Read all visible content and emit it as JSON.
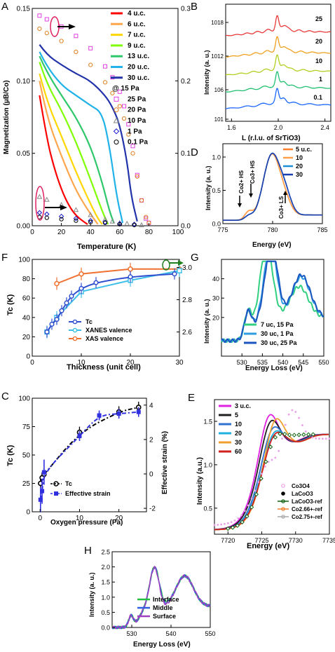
{
  "chart_data": [
    {
      "panel": "A",
      "type": "line",
      "xlabel": "Temperature (K)",
      "ylabel": "Magnetization (μB/Co)",
      "xlim": [
        0,
        100
      ],
      "ylim": [
        0,
        0.15
      ],
      "y2lim": [
        0,
        0.3
      ],
      "xticks": [
        "0",
        "20",
        "40",
        "60",
        "80",
        "100"
      ],
      "yticks": [
        "0.00",
        "0.05",
        "0.10",
        "0.15"
      ],
      "y2ticks": [
        "0.0",
        "0.1",
        "0.2",
        "0.3"
      ],
      "legend_position": "top-right",
      "series": [
        {
          "name": "4 u.c.",
          "color": "#ff0000",
          "x": [
            5,
            10,
            15,
            20,
            25,
            30,
            35,
            38
          ],
          "y": [
            0.09,
            0.06,
            0.04,
            0.025,
            0.014,
            0.007,
            0.003,
            0.001
          ]
        },
        {
          "name": "6 u.c.",
          "color": "#ffa64d",
          "x": [
            5,
            10,
            20,
            30,
            40,
            45
          ],
          "y": [
            0.1,
            0.075,
            0.048,
            0.024,
            0.008,
            0.001
          ]
        },
        {
          "name": "7 u.c.",
          "color": "#ffd700",
          "x": [
            5,
            10,
            20,
            30,
            40,
            45,
            48
          ],
          "y": [
            0.105,
            0.086,
            0.062,
            0.037,
            0.015,
            0.005,
            0.001
          ]
        },
        {
          "name": "9 u.c.",
          "color": "#7fff00",
          "x": [
            5,
            10,
            20,
            30,
            40,
            48,
            52
          ],
          "y": [
            0.113,
            0.098,
            0.08,
            0.058,
            0.032,
            0.01,
            0.001
          ]
        },
        {
          "name": "13 u.c.",
          "color": "#2ec86a",
          "x": [
            5,
            10,
            20,
            30,
            40,
            48,
            53,
            56
          ],
          "y": [
            0.117,
            0.106,
            0.09,
            0.075,
            0.055,
            0.03,
            0.01,
            0.002
          ]
        },
        {
          "name": "20 u.c.",
          "color": "#20b2e8",
          "x": [
            5,
            10,
            20,
            30,
            40,
            48,
            53,
            58,
            62
          ],
          "y": [
            0.12,
            0.11,
            0.097,
            0.09,
            0.083,
            0.078,
            0.055,
            0.02,
            0.002
          ]
        },
        {
          "name": "30 u.c.",
          "color": "#2233aa",
          "x": [
            5,
            10,
            20,
            30,
            40,
            50,
            55,
            60,
            65,
            68,
            72
          ],
          "y": [
            0.125,
            0.118,
            0.111,
            0.105,
            0.1,
            0.09,
            0.082,
            0.07,
            0.045,
            0.02,
            0.003
          ]
        }
      ],
      "marker_series": [
        {
          "name": "@ 15 Pa",
          "axis": "right",
          "marker": "at",
          "color": "#000000",
          "x": [],
          "y": []
        },
        {
          "name": "25 Pa",
          "axis": "right",
          "marker": "square",
          "color": "#e040e0",
          "x": [
            5,
            10,
            20,
            30,
            40,
            50,
            55,
            60,
            63,
            66,
            69,
            72,
            75,
            78,
            80
          ],
          "y": [
            0.29,
            0.285,
            0.275,
            0.262,
            0.245,
            0.22,
            0.205,
            0.185,
            0.165,
            0.14,
            0.11,
            0.07,
            0.035,
            0.01,
            0.004
          ]
        },
        {
          "name": "20 Pa",
          "axis": "right",
          "marker": "circle",
          "color": "#e08020",
          "x": [
            5,
            10,
            20,
            30,
            40,
            50,
            55,
            60,
            63,
            66,
            69,
            72,
            75,
            78,
            80
          ],
          "y": [
            0.272,
            0.266,
            0.255,
            0.24,
            0.222,
            0.198,
            0.183,
            0.165,
            0.148,
            0.126,
            0.1,
            0.068,
            0.035,
            0.012,
            0.004
          ]
        },
        {
          "name": "10 Pa",
          "axis": "right",
          "marker": "triangle",
          "color": "#888888",
          "x": [
            5,
            10,
            20,
            30,
            40,
            50,
            55,
            60,
            65,
            70,
            75
          ],
          "y": [
            0.04,
            0.036,
            0.029,
            0.022,
            0.015,
            0.009,
            0.006,
            0.004,
            0.003,
            0.002,
            0.001
          ]
        },
        {
          "name": "1 Pa",
          "axis": "right",
          "marker": "diamond",
          "color": "#1010d0",
          "x": [
            5,
            10,
            20,
            30,
            40,
            50,
            60,
            70
          ],
          "y": [
            0.018,
            0.016,
            0.013,
            0.01,
            0.007,
            0.005,
            0.003,
            0.002
          ]
        },
        {
          "name": "0.1 Pa",
          "axis": "right",
          "marker": "circle",
          "color": "#000000",
          "x": [
            5,
            10,
            20,
            30,
            40,
            50,
            60,
            70
          ],
          "y": [
            0.012,
            0.011,
            0.009,
            0.007,
            0.005,
            0.004,
            0.002,
            0.001
          ]
        }
      ]
    },
    {
      "panel": "B",
      "type": "line",
      "xlabel": "L (r.l.u. of SrTiO3)",
      "ylabel": "Intensity (a. u.)",
      "xlim": [
        1.55,
        2.45
      ],
      "xticks": [
        "1.6",
        "2.0",
        "2.4"
      ],
      "yticks": [
        "10^1",
        "10^6",
        "10^12",
        "10^18"
      ],
      "labels": [
        "25",
        "20",
        "10",
        "1",
        "0.1"
      ],
      "colors": [
        "#e83a3a",
        "#f0a020",
        "#b0d020",
        "#20c070",
        "#1a66ff"
      ]
    },
    {
      "panel": "D",
      "type": "line",
      "xlabel": "Energy (eV)",
      "ylabel": "Intensity (a. u.)",
      "xlim": [
        775,
        785
      ],
      "ylim": [
        0,
        1.2
      ],
      "xticks": [
        "775",
        "780",
        "785"
      ],
      "yticks": [
        "0.0",
        "0.5",
        "1.0"
      ],
      "annotations": [
        "Co2+ HS",
        "Co3+ HS",
        "Co3+ LS"
      ],
      "series": [
        {
          "name": "5 u.c.",
          "color": "#ff7f2a"
        },
        {
          "name": "10",
          "color": "#ff9f4a"
        },
        {
          "name": "20",
          "color": "#1b8fd8"
        },
        {
          "name": "30",
          "color": "#1a3fb0"
        }
      ]
    },
    {
      "panel": "F",
      "type": "line",
      "xlabel": "Thickness (unit cell)",
      "ylabel": "Tc (K)",
      "xlim": [
        0,
        30
      ],
      "ylim": [
        0,
        100
      ],
      "y2lim": [
        2.45,
        3.05
      ],
      "xticks": [
        "0",
        "10",
        "20",
        "30"
      ],
      "yticks": [
        "0",
        "20",
        "40",
        "60",
        "80",
        "100"
      ],
      "y2ticks": [
        "2.6",
        "2.8",
        "3.0"
      ],
      "series": [
        {
          "name": "Tc",
          "color": "#3050d0",
          "x": [
            3,
            4,
            5,
            6,
            7,
            8,
            10,
            13,
            20,
            29
          ],
          "y": [
            25,
            33,
            38,
            47,
            55,
            62,
            70,
            76,
            82,
            85
          ]
        },
        {
          "name": "XANES valence",
          "color": "#40c0e8",
          "x": [
            3,
            5,
            10,
            20,
            30
          ],
          "y": [
            2.6,
            2.69,
            2.85,
            2.92,
            2.98
          ]
        },
        {
          "name": "XAS valence",
          "color": "#f07030",
          "x": [
            5,
            10,
            20,
            30
          ],
          "y": [
            2.9,
            2.96,
            2.99,
            2.99
          ]
        }
      ]
    },
    {
      "panel": "G",
      "type": "line",
      "xlabel": "Energy Loss (eV)",
      "ylabel": "Intensity (a. u.)",
      "xlim": [
        525,
        550
      ],
      "ylim": [
        0,
        50
      ],
      "xticks": [
        "530",
        "535",
        "540",
        "545",
        "550"
      ],
      "yticks": [
        "20",
        "30",
        "40"
      ],
      "series": [
        {
          "name": "7 uc, 15 Pa",
          "color": "#30d080"
        },
        {
          "name": "30 uc, 1 Pa",
          "color": "#2f9ee0"
        },
        {
          "name": "30 uc, 25 Pa",
          "color": "#1a55c0"
        }
      ]
    },
    {
      "panel": "C",
      "type": "scatter",
      "xlabel": "Oxygen pressure (Pa)",
      "ylabel": "Tc (K)",
      "y2label": "Effective strain (%)",
      "xlim": [
        -2,
        27
      ],
      "ylim": [
        0,
        100
      ],
      "y2lim": [
        -2.2,
        4.4
      ],
      "xticks": [
        "0",
        "10",
        "20"
      ],
      "yticks": [
        "0",
        "25",
        "50",
        "75",
        "100"
      ],
      "y2ticks": [
        "-2",
        "0",
        "2",
        "4"
      ],
      "series": [
        {
          "name": "Tc",
          "color": "#000000",
          "x": [
            0.1,
            0.5,
            1,
            10,
            20,
            25
          ],
          "y": [
            25,
            30,
            33,
            70,
            88,
            92
          ]
        },
        {
          "name": "Effective strain",
          "color": "#3030e0",
          "x": [
            0.1,
            0.5,
            1,
            10,
            15,
            20,
            25
          ],
          "y": [
            -1.5,
            -1.0,
            0.1,
            2.2,
            3.4,
            3.5,
            3.6
          ]
        }
      ]
    },
    {
      "panel": "E",
      "type": "line",
      "xlabel": "Energy (eV)",
      "ylabel": "Intensity (a.u.)",
      "xlim": [
        7718,
        7735
      ],
      "ylim": [
        0.2,
        1.75
      ],
      "xticks": [
        "7720",
        "7725",
        "7730",
        "7735"
      ],
      "yticks": [
        "0.5",
        "1.0",
        "1.5"
      ],
      "series": [
        {
          "name": "3 u.c.",
          "color": "#e020e0"
        },
        {
          "name": "5",
          "color": "#202020"
        },
        {
          "name": "10",
          "color": "#3070d0"
        },
        {
          "name": "20",
          "color": "#20b0e0"
        },
        {
          "name": "30",
          "color": "#f0a030"
        },
        {
          "name": "60",
          "color": "#d02020"
        },
        {
          "name": "Co3O4",
          "color": "#e8a0e8"
        },
        {
          "name": "LaCoO3",
          "color": "#000000"
        },
        {
          "name": "LaCoO3-ref",
          "color": "#106010"
        },
        {
          "name": "Co2.66+-ref",
          "color": "#f08030"
        },
        {
          "name": "Co2.75+-ref",
          "color": "#aaaaaa"
        }
      ]
    },
    {
      "panel": "H",
      "type": "line",
      "xlabel": "Energy Loss (eV)",
      "ylabel": "Intensity (a. u.)",
      "xlim": [
        525,
        550
      ],
      "ylim": [
        0,
        2.5
      ],
      "xticks": [
        "530",
        "540",
        "550"
      ],
      "yticks": [
        "0.0",
        "0.5",
        "1.0",
        "1.5",
        "2.0",
        "2.5"
      ],
      "series": [
        {
          "name": "Interface",
          "color": "#20c040"
        },
        {
          "name": "Middle",
          "color": "#3060e0"
        },
        {
          "name": "Surface",
          "color": "#a040c0"
        }
      ]
    }
  ]
}
